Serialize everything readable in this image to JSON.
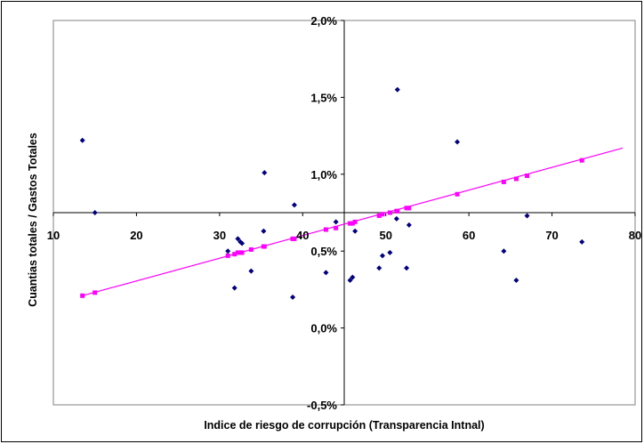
{
  "chart_data": {
    "type": "scatter",
    "title": "",
    "xlabel": "Indice de riesgo de corrupción (Transparencia Intnal)",
    "ylabel": "Cuantias totales / Gastos Totales",
    "xlim": [
      10,
      80
    ],
    "ylim": [
      -0.005,
      0.02
    ],
    "x_ticks": [
      "10",
      "20",
      "30",
      "40",
      "50",
      "60",
      "70",
      "80"
    ],
    "y_ticks": [
      "-0,5%",
      "0,0%",
      "0,5%",
      "1,0%",
      "1,5%",
      "2,0%"
    ],
    "x_axis_crosses_y_at": 0.0075,
    "y_axis_crosses_x_at": 45,
    "grid": false,
    "legend": "none",
    "colors": {
      "points": "#000080",
      "trend": "#ff00ff"
    },
    "series": [
      {
        "type": "scatter",
        "marker": "diamond",
        "points": [
          [
            13.5,
            0.0122
          ],
          [
            15.0,
            0.0075
          ],
          [
            31.0,
            0.005
          ],
          [
            31.8,
            0.0026
          ],
          [
            32.2,
            0.0058
          ],
          [
            32.5,
            0.0056
          ],
          [
            32.7,
            0.0055
          ],
          [
            33.8,
            0.0037
          ],
          [
            35.3,
            0.0063
          ],
          [
            35.4,
            0.0101
          ],
          [
            38.8,
            0.002
          ],
          [
            39.0,
            0.008
          ],
          [
            42.8,
            0.0036
          ],
          [
            44.0,
            0.0069
          ],
          [
            45.7,
            0.0031
          ],
          [
            46.0,
            0.0033
          ],
          [
            46.3,
            0.0063
          ],
          [
            49.2,
            0.0039
          ],
          [
            49.6,
            0.0047
          ],
          [
            50.5,
            0.0049
          ],
          [
            51.3,
            0.0071
          ],
          [
            51.4,
            0.0155
          ],
          [
            52.5,
            0.0039
          ],
          [
            52.8,
            0.0067
          ],
          [
            58.6,
            0.0121
          ],
          [
            64.2,
            0.005
          ],
          [
            65.7,
            0.0031
          ],
          [
            67.0,
            0.0073
          ],
          [
            73.6,
            0.0056
          ]
        ]
      },
      {
        "type": "line",
        "marker": "square",
        "points": [
          [
            13.5,
            0.0021
          ],
          [
            15.0,
            0.0023
          ],
          [
            31.0,
            0.0047
          ],
          [
            31.8,
            0.0048
          ],
          [
            32.2,
            0.0049
          ],
          [
            32.5,
            0.0049
          ],
          [
            32.7,
            0.0049
          ],
          [
            33.8,
            0.0051
          ],
          [
            35.3,
            0.0053
          ],
          [
            35.4,
            0.0053
          ],
          [
            38.8,
            0.0058
          ],
          [
            39.0,
            0.0058
          ],
          [
            42.8,
            0.0064
          ],
          [
            44.0,
            0.0065
          ],
          [
            45.7,
            0.0068
          ],
          [
            46.0,
            0.0068
          ],
          [
            46.3,
            0.0069
          ],
          [
            49.2,
            0.0073
          ],
          [
            49.6,
            0.0074
          ],
          [
            50.5,
            0.0075
          ],
          [
            51.3,
            0.0076
          ],
          [
            51.4,
            0.0076
          ],
          [
            52.5,
            0.0078
          ],
          [
            52.8,
            0.0078
          ],
          [
            58.6,
            0.0087
          ],
          [
            64.2,
            0.0095
          ],
          [
            65.7,
            0.0097
          ],
          [
            67.0,
            0.0099
          ],
          [
            73.6,
            0.0109
          ]
        ],
        "line": [
          [
            13.5,
            0.0021
          ],
          [
            78.5,
            0.0117
          ]
        ]
      }
    ]
  }
}
